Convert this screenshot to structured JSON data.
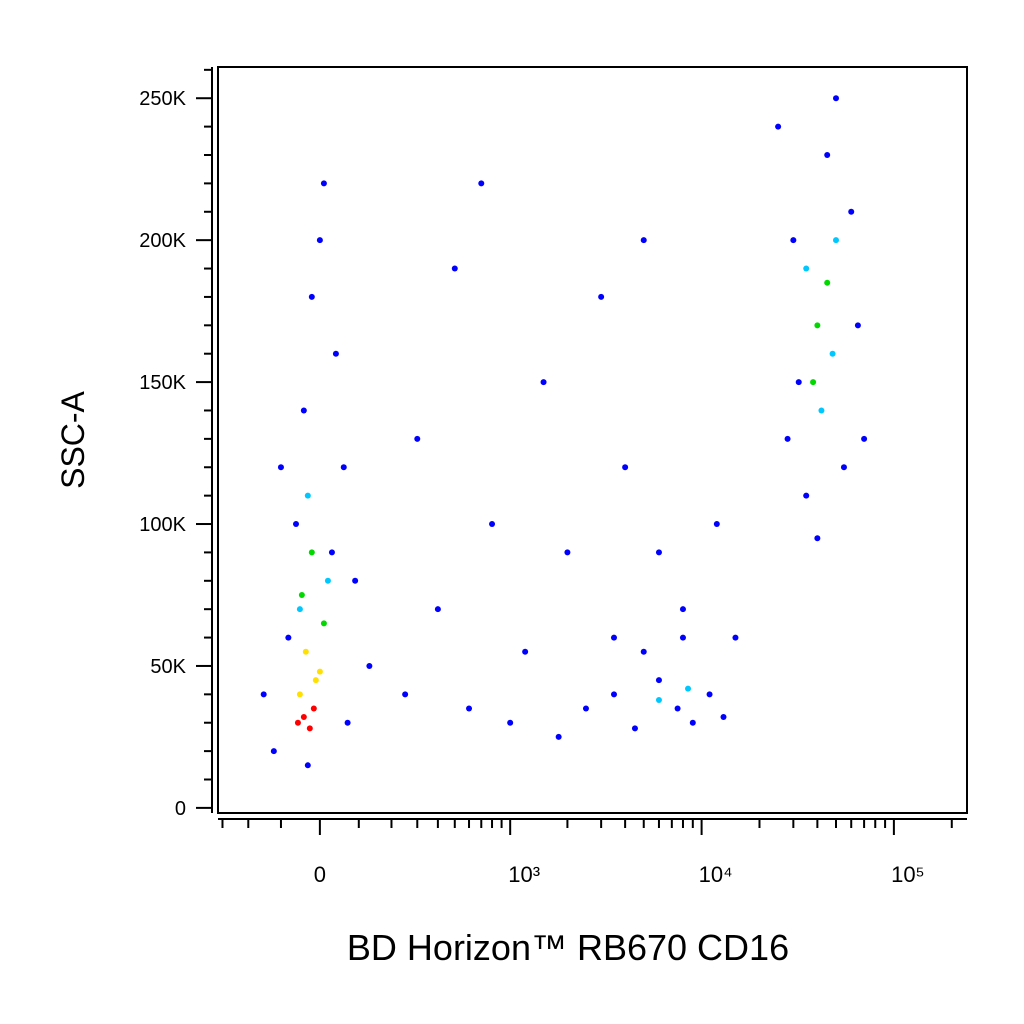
{
  "chart_data": {
    "type": "scatter",
    "x_label": "BD Horizon™ RB670 CD16",
    "y_label": "SSC-A",
    "xscale": "biexponential",
    "xlim": [
      -320,
      240000
    ],
    "ylim": [
      -1800,
      261000
    ],
    "xticks": [
      {
        "value": 0,
        "label": "0"
      },
      {
        "value": 1000,
        "label": "10³"
      },
      {
        "value": 10000,
        "label": "10⁴"
      },
      {
        "value": 100000,
        "label": "10⁵"
      }
    ],
    "xminorticks": [
      -300,
      -200,
      -100,
      100,
      200,
      300,
      400,
      500,
      600,
      700,
      800,
      900,
      2000,
      3000,
      4000,
      5000,
      6000,
      7000,
      8000,
      9000,
      20000,
      30000,
      40000,
      50000,
      60000,
      70000,
      80000,
      90000,
      200000
    ],
    "yticks": [
      {
        "value": 0,
        "label": "0"
      },
      {
        "value": 50000,
        "label": "50K"
      },
      {
        "value": 100000,
        "label": "100K"
      },
      {
        "value": 150000,
        "label": "150K"
      },
      {
        "value": 200000,
        "label": "200K"
      },
      {
        "value": 250000,
        "label": "250K"
      }
    ],
    "yminorticks": [
      10000,
      20000,
      30000,
      40000,
      60000,
      70000,
      80000,
      90000,
      110000,
      120000,
      130000,
      140000,
      160000,
      170000,
      180000,
      190000,
      210000,
      220000,
      230000,
      240000,
      260000
    ],
    "series": [
      {
        "color": "#0000ff",
        "x": [
          -120,
          -80,
          -60,
          -40,
          -20,
          10,
          40,
          60,
          90,
          130,
          -150,
          -100,
          30,
          70,
          -30,
          0,
          250,
          400,
          600,
          800,
          1000,
          1200,
          1500,
          2000,
          2500,
          3000,
          3500,
          500,
          300,
          1800,
          4000,
          6000,
          8000,
          12000,
          15000,
          700,
          5000,
          3500,
          4500,
          6000,
          7500,
          9000,
          11000,
          13000,
          5000,
          8000,
          25000,
          30000,
          32000,
          35000,
          40000,
          50000,
          60000,
          65000,
          70000,
          55000,
          28000,
          45000
        ],
        "values": [
          20000,
          60000,
          100000,
          140000,
          180000,
          220000,
          160000,
          120000,
          80000,
          50000,
          40000,
          120000,
          90000,
          30000,
          15000,
          200000,
          40000,
          70000,
          35000,
          100000,
          30000,
          55000,
          150000,
          90000,
          35000,
          180000,
          60000,
          190000,
          130000,
          25000,
          120000,
          90000,
          70000,
          100000,
          60000,
          220000,
          200000,
          40000,
          28000,
          45000,
          35000,
          30000,
          40000,
          32000,
          55000,
          60000,
          240000,
          200000,
          150000,
          110000,
          95000,
          250000,
          210000,
          170000,
          130000,
          120000,
          130000,
          230000
        ]
      },
      {
        "color": "#00c8ff",
        "x": [
          -30,
          20,
          -50,
          6000,
          8500,
          35000,
          48000,
          42000,
          50000
        ],
        "values": [
          110000,
          80000,
          70000,
          38000,
          42000,
          190000,
          160000,
          140000,
          200000
        ]
      },
      {
        "color": "#00d800",
        "x": [
          -20,
          -45,
          40000,
          45000,
          38000,
          10
        ],
        "values": [
          90000,
          75000,
          170000,
          185000,
          150000,
          65000
        ]
      },
      {
        "color": "#ffe000",
        "x": [
          -35,
          -10,
          -50,
          0
        ],
        "values": [
          55000,
          45000,
          40000,
          48000
        ]
      },
      {
        "color": "#ff0000",
        "x": [
          -40,
          -25,
          -55,
          -15
        ],
        "values": [
          32000,
          28000,
          30000,
          35000
        ]
      }
    ]
  }
}
